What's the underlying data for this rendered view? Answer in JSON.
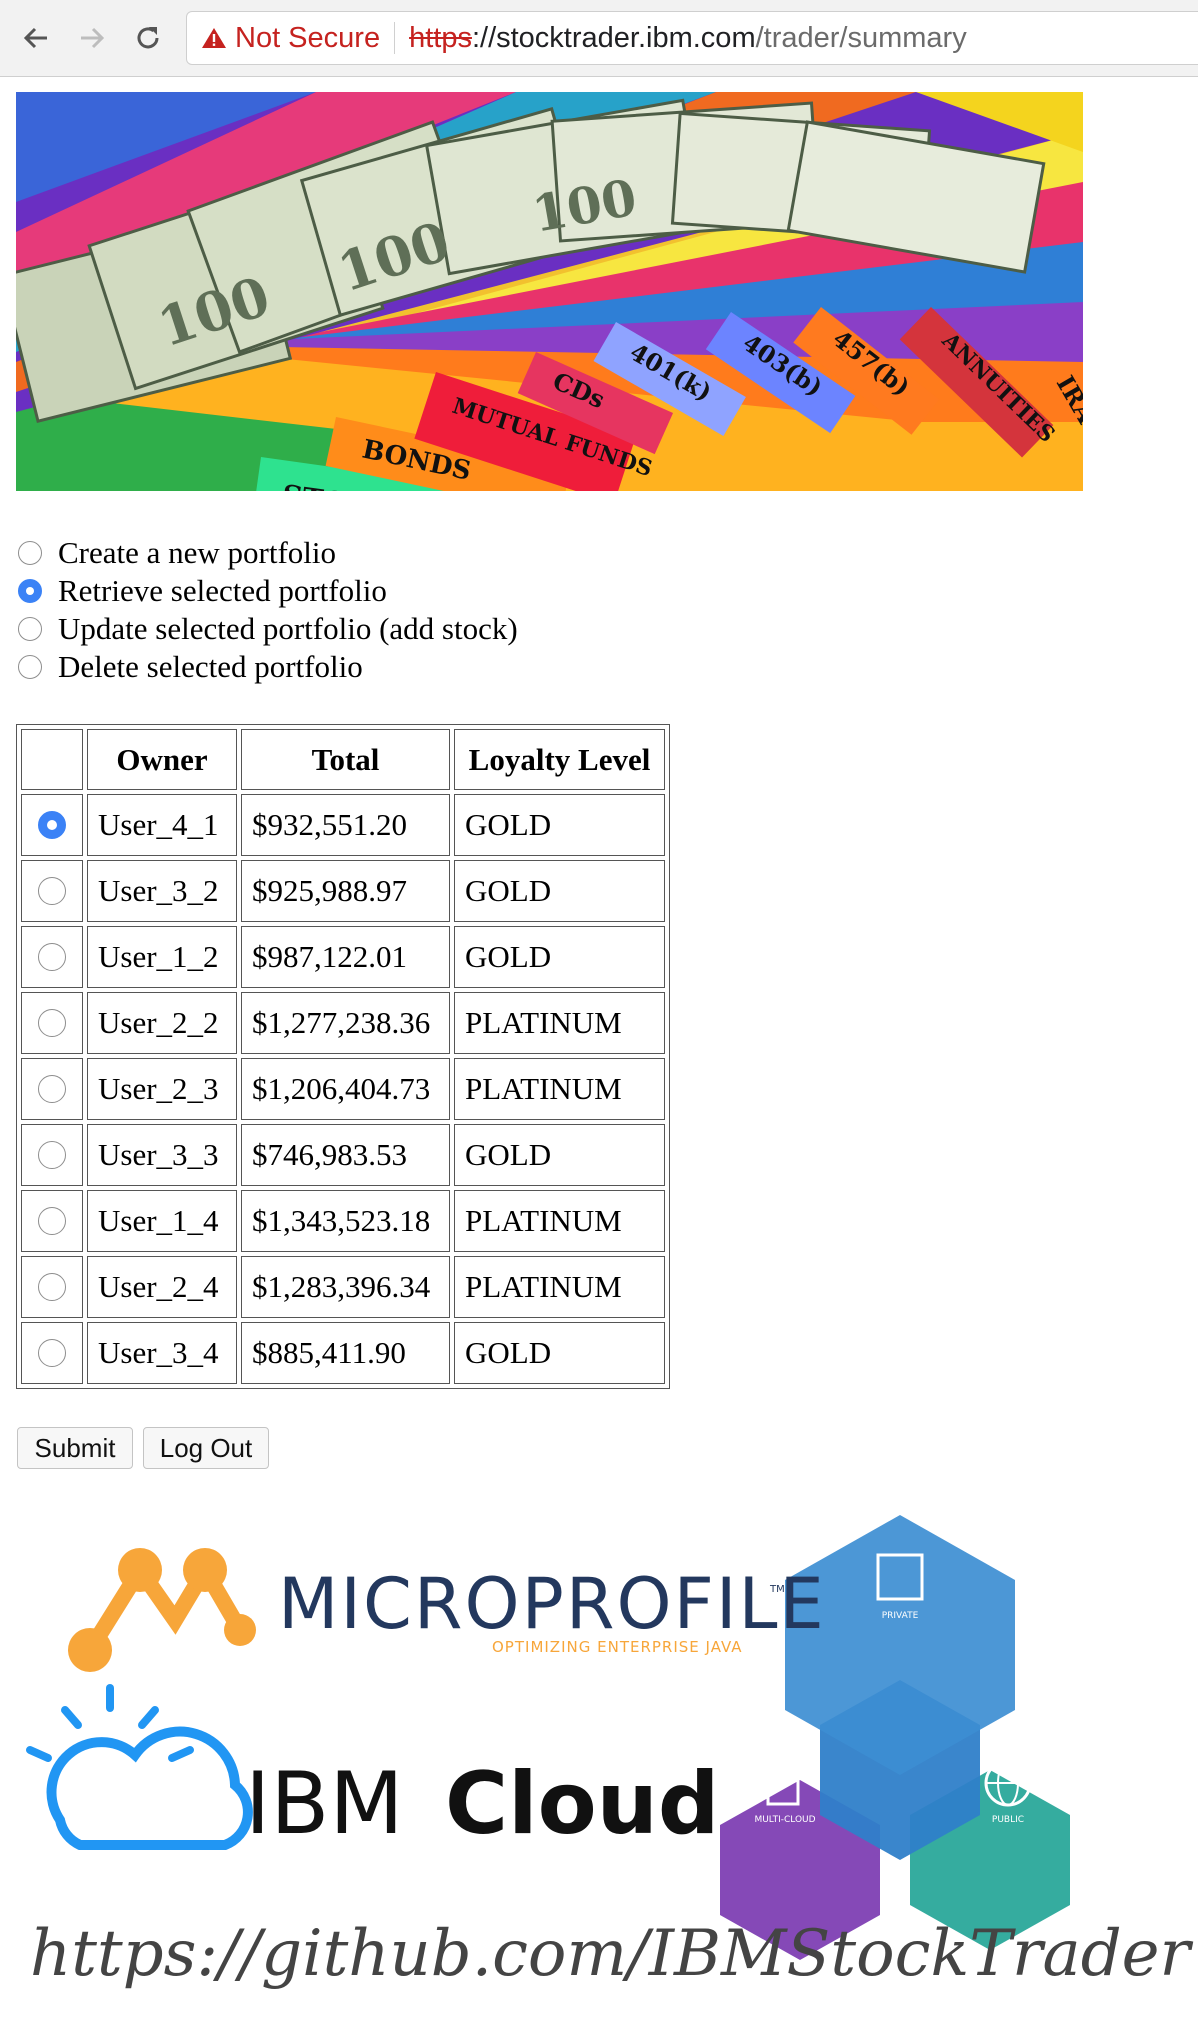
{
  "browser": {
    "security_label": "Not Secure",
    "url_scheme": "https",
    "url_sep": "://",
    "url_host": "stocktrader.ibm.com",
    "url_path": "/trader/summary"
  },
  "banner": {
    "folder_tabs": [
      "STOCKS",
      "BONDS",
      "MUTUAL FUNDS",
      "CDs",
      "401(k)",
      "403(b)",
      "457(b)",
      "ANNUITIES",
      "IRA"
    ],
    "bill_text": "100"
  },
  "actions": {
    "selected": 1,
    "options": [
      {
        "label": "Create a new portfolio"
      },
      {
        "label": "Retrieve selected portfolio"
      },
      {
        "label": "Update selected portfolio (add stock)"
      },
      {
        "label": "Delete selected portfolio"
      }
    ]
  },
  "table": {
    "headers": {
      "owner": "Owner",
      "total": "Total",
      "loyalty": "Loyalty Level"
    },
    "selected": 0,
    "rows": [
      {
        "owner": "User_4_1",
        "total": "$932,551.20",
        "loyalty": "GOLD"
      },
      {
        "owner": "User_3_2",
        "total": "$925,988.97",
        "loyalty": "GOLD"
      },
      {
        "owner": "User_1_2",
        "total": "$987,122.01",
        "loyalty": "GOLD"
      },
      {
        "owner": "User_2_2",
        "total": "$1,277,238.36",
        "loyalty": "PLATINUM"
      },
      {
        "owner": "User_2_3",
        "total": "$1,206,404.73",
        "loyalty": "PLATINUM"
      },
      {
        "owner": "User_3_3",
        "total": "$746,983.53",
        "loyalty": "GOLD"
      },
      {
        "owner": "User_1_4",
        "total": "$1,343,523.18",
        "loyalty": "PLATINUM"
      },
      {
        "owner": "User_2_4",
        "total": "$1,283,396.34",
        "loyalty": "PLATINUM"
      },
      {
        "owner": "User_3_4",
        "total": "$885,411.90",
        "loyalty": "GOLD"
      }
    ]
  },
  "buttons": {
    "submit": "Submit",
    "logout": "Log Out"
  },
  "logos": {
    "microprofile": "MICROPROFILE",
    "microprofile_tm": "TM",
    "microprofile_tagline": "OPTIMIZING ENTERPRISE JAVA",
    "ibm_cloud_prefix": "IBM",
    "ibm_cloud_suffix": "Cloud",
    "private": "PRIVATE",
    "multi_cloud": "MULTI-CLOUD",
    "public": "PUBLIC",
    "github": "https://github.com/IBMStockTrader"
  },
  "colors": {
    "radio_checked": "#3b82f6",
    "not_secure": "#c5221f",
    "microprofile_orange": "#f7a63a",
    "ibm_cloud_blue": "#1e88e5"
  }
}
